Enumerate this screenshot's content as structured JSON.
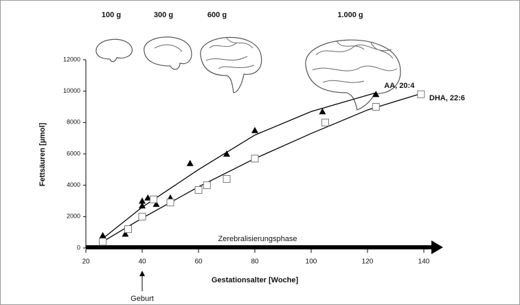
{
  "chart_data": {
    "type": "scatter",
    "brain_labels": [
      "100 g",
      "300 g",
      "600 g",
      "1.000 g"
    ],
    "ylabel": "Fettsäuren [µmol]",
    "xlabel": "Gestationsalter [Woche]",
    "axis_annotation": "Zerebralisierungsphase",
    "birth_label": "Geburt",
    "xlim": [
      20,
      140
    ],
    "xticks": [
      20,
      40,
      60,
      80,
      100,
      120,
      140
    ],
    "ylim": [
      0,
      12000
    ],
    "yticks": [
      0,
      2000,
      4000,
      6000,
      8000,
      10000,
      12000
    ],
    "series": [
      {
        "name": "AA, 20:4",
        "color": "#000000",
        "marker": "triangle",
        "x": [
          26,
          34,
          40,
          40,
          42,
          45,
          50,
          57,
          70,
          80,
          104,
          123
        ],
        "values": [
          800,
          900,
          2700,
          3000,
          3200,
          2800,
          3200,
          5400,
          6000,
          7500,
          8700,
          9800
        ],
        "curve": {
          "x": [
            26,
            40,
            60,
            80,
            100,
            123
          ],
          "values": [
            600,
            2600,
            5000,
            7200,
            8700,
            9900
          ]
        }
      },
      {
        "name": "DHA, 22:6",
        "color": "#777777",
        "marker": "square",
        "x": [
          26,
          35,
          40,
          44,
          50,
          60,
          63,
          70,
          80,
          105,
          123,
          139
        ],
        "values": [
          400,
          1200,
          2000,
          3100,
          2900,
          3700,
          4000,
          4400,
          5700,
          8000,
          9000,
          9800
        ],
        "curve": {
          "x": [
            26,
            40,
            60,
            80,
            100,
            120,
            140
          ],
          "values": [
            400,
            1900,
            3900,
            5700,
            7300,
            8800,
            9900
          ]
        }
      }
    ]
  }
}
